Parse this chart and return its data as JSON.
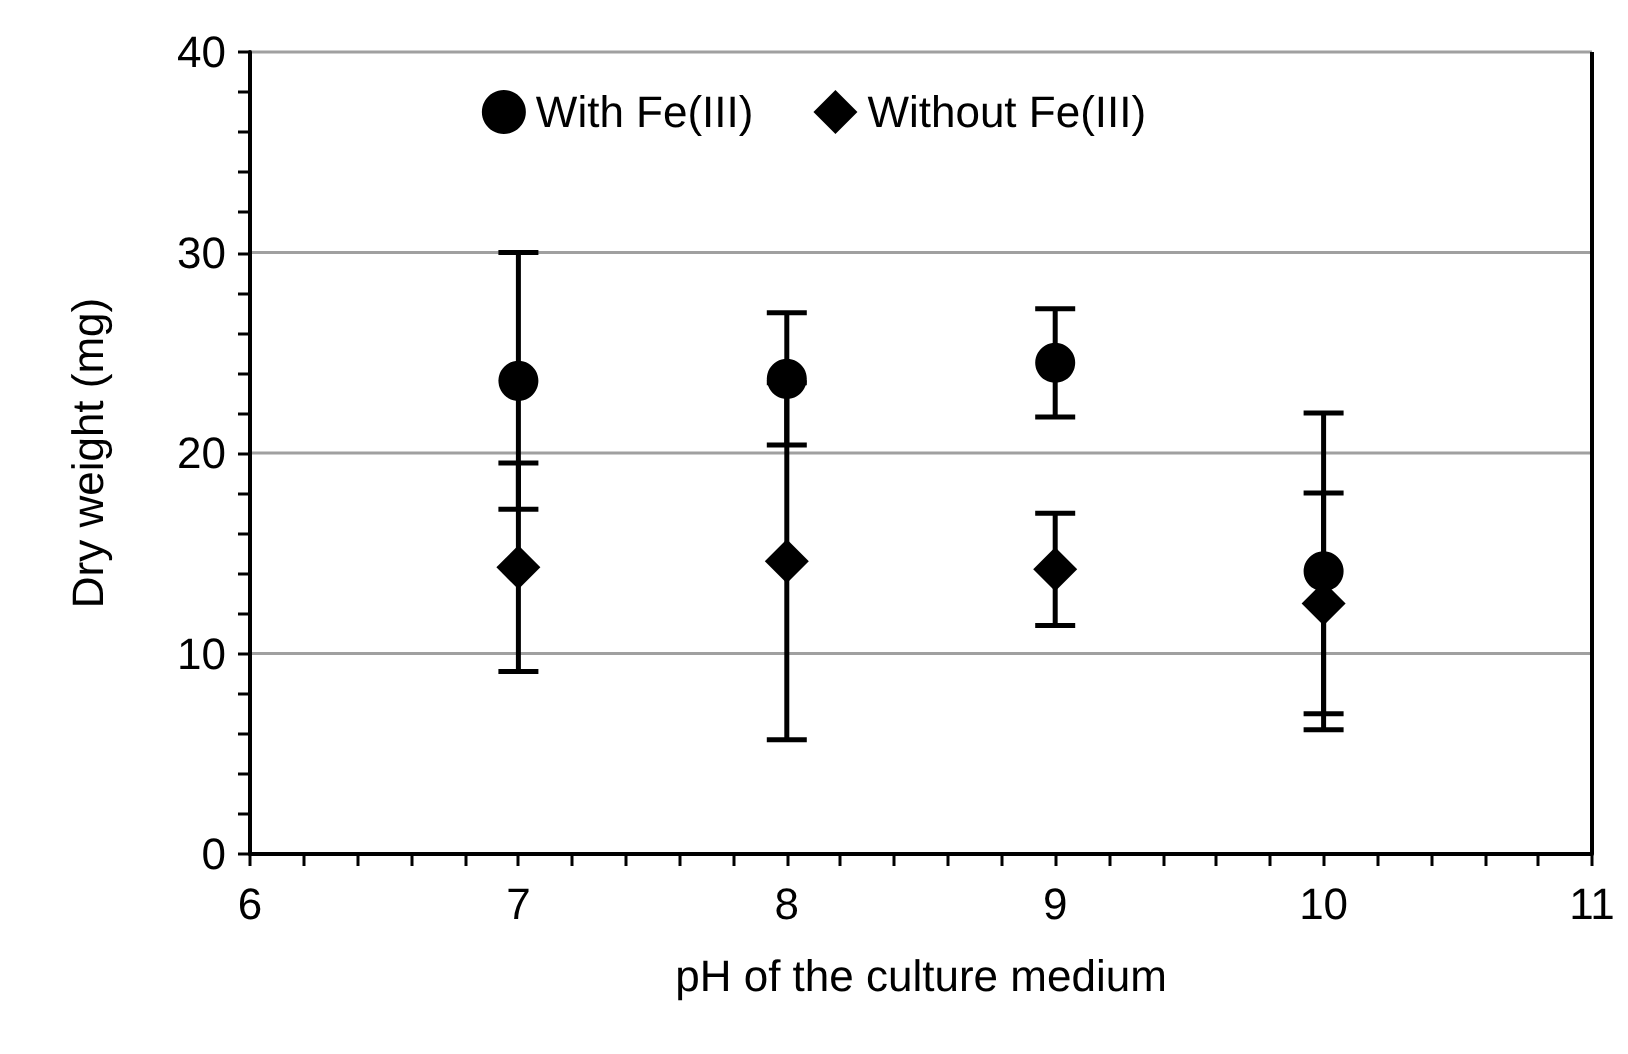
{
  "chart_data": {
    "type": "scatter",
    "xlabel": "pH of the culture medium",
    "ylabel": "Dry weight (mg)",
    "x": [
      7,
      8,
      9,
      10
    ],
    "series": [
      {
        "name": "With Fe(III)",
        "color": "#000000",
        "marker": "circle",
        "values": [
          23.6,
          23.7,
          24.5,
          14.1
        ],
        "errors": [
          6.4,
          3.3,
          2.7,
          7.9
        ]
      },
      {
        "name": "Without Fe(III)",
        "color": "#000000",
        "marker": "diamond",
        "values": [
          14.3,
          14.6,
          14.2,
          12.5
        ],
        "errors": [
          5.2,
          8.9,
          2.8,
          5.5
        ]
      }
    ],
    "xlim": [
      6,
      11
    ],
    "xticks": [
      6,
      {
        "value": 6.2,
        "label": null
      },
      {
        "value": 6.4,
        "label": null
      },
      {
        "value": 6.6,
        "label": null
      },
      {
        "value": 6.8,
        "label": null
      },
      7,
      {
        "value": 7.2,
        "label": null
      },
      {
        "value": 7.4,
        "label": null
      },
      {
        "value": 7.6,
        "label": null
      },
      {
        "value": 7.8,
        "label": null
      },
      8,
      {
        "value": 8.2,
        "label": null
      },
      {
        "value": 8.4,
        "label": null
      },
      {
        "value": 8.6,
        "label": null
      },
      {
        "value": 8.8,
        "label": null
      },
      9,
      {
        "value": 9.2,
        "label": null
      },
      {
        "value": 9.4,
        "label": null
      },
      {
        "value": 9.6,
        "label": null
      },
      {
        "value": 9.8,
        "label": null
      },
      10,
      {
        "value": 10.2,
        "label": null
      },
      {
        "value": 10.4,
        "label": null
      },
      {
        "value": 10.6,
        "label": null
      },
      {
        "value": 10.8,
        "label": null
      },
      11
    ],
    "ylim": [
      0,
      40
    ],
    "yticks": [
      0,
      {
        "value": 2,
        "label": null
      },
      {
        "value": 4,
        "label": null
      },
      {
        "value": 6,
        "label": null
      },
      {
        "value": 8,
        "label": null
      },
      10,
      {
        "value": 12,
        "label": null
      },
      {
        "value": 14,
        "label": null
      },
      {
        "value": 16,
        "label": null
      },
      {
        "value": 18,
        "label": null
      },
      20,
      {
        "value": 22,
        "label": null
      },
      {
        "value": 24,
        "label": null
      },
      {
        "value": 26,
        "label": null
      },
      {
        "value": 28,
        "label": null
      },
      30,
      {
        "value": 32,
        "label": null
      },
      {
        "value": 34,
        "label": null
      },
      {
        "value": 36,
        "label": null
      },
      {
        "value": 38,
        "label": null
      },
      40
    ],
    "grid": "y",
    "legend": "top"
  }
}
